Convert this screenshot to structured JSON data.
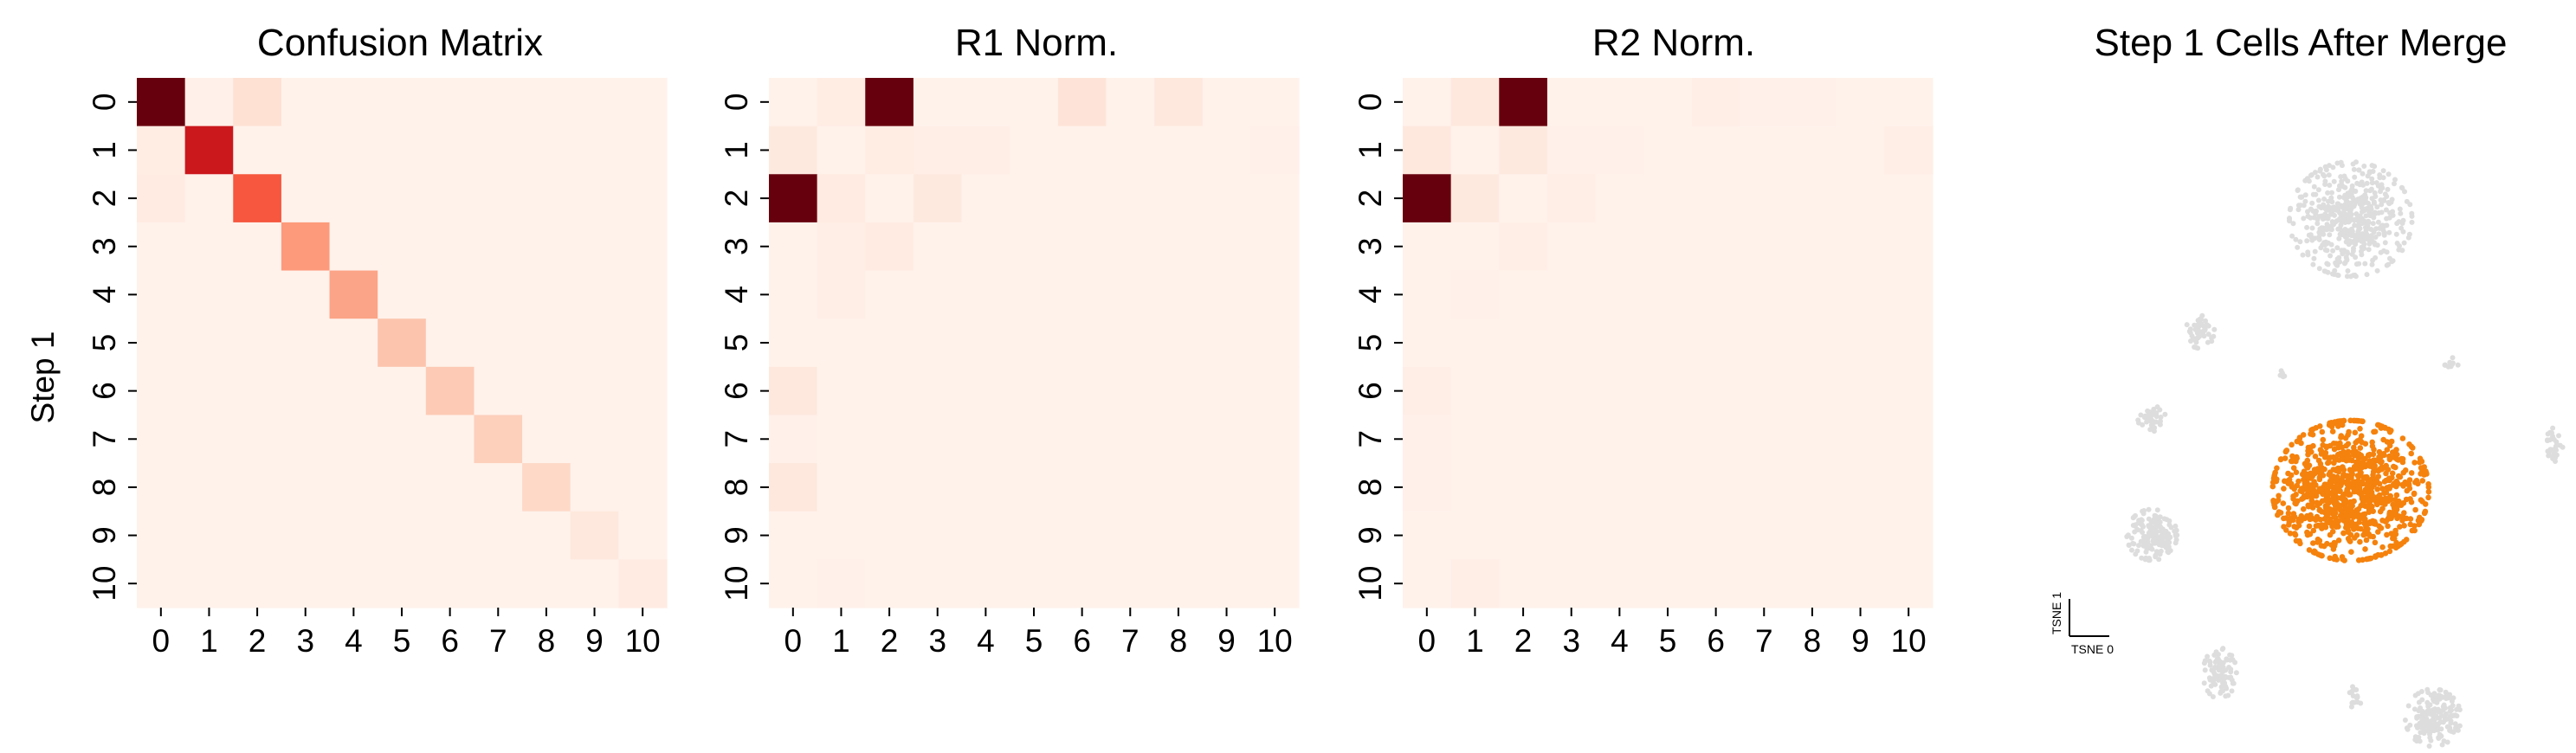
{
  "figure": {
    "panels": [
      "Confusion Matrix",
      "R1 Norm.",
      "R2 Norm.",
      "Step 1 Cells After Merge"
    ]
  },
  "chart_data": [
    {
      "type": "heatmap",
      "title": "Confusion Matrix",
      "ylabel": "Step 1",
      "xlabel": "",
      "x_categories": [
        "0",
        "1",
        "2",
        "3",
        "4",
        "5",
        "6",
        "7",
        "8",
        "9",
        "10"
      ],
      "y_categories": [
        "0",
        "1",
        "2",
        "3",
        "4",
        "5",
        "6",
        "7",
        "8",
        "9",
        "10"
      ],
      "colormap": "Reds",
      "grid": false,
      "values": [
        [
          1.0,
          0.03,
          0.12,
          0.02,
          0.02,
          0.02,
          0.02,
          0.02,
          0.02,
          0.02,
          0.02
        ],
        [
          0.05,
          0.75,
          0.02,
          0.02,
          0.02,
          0.02,
          0.02,
          0.02,
          0.02,
          0.02,
          0.02
        ],
        [
          0.06,
          0.02,
          0.55,
          0.02,
          0.02,
          0.02,
          0.02,
          0.02,
          0.02,
          0.02,
          0.02
        ],
        [
          0.02,
          0.02,
          0.02,
          0.35,
          0.02,
          0.02,
          0.02,
          0.02,
          0.02,
          0.02,
          0.02
        ],
        [
          0.02,
          0.02,
          0.02,
          0.02,
          0.32,
          0.02,
          0.02,
          0.02,
          0.02,
          0.02,
          0.02
        ],
        [
          0.02,
          0.02,
          0.02,
          0.02,
          0.02,
          0.22,
          0.02,
          0.02,
          0.02,
          0.02,
          0.02
        ],
        [
          0.02,
          0.02,
          0.02,
          0.02,
          0.02,
          0.02,
          0.2,
          0.02,
          0.02,
          0.02,
          0.02
        ],
        [
          0.02,
          0.02,
          0.02,
          0.02,
          0.02,
          0.02,
          0.02,
          0.18,
          0.02,
          0.02,
          0.02
        ],
        [
          0.02,
          0.02,
          0.02,
          0.02,
          0.02,
          0.02,
          0.02,
          0.02,
          0.15,
          0.02,
          0.02
        ],
        [
          0.02,
          0.02,
          0.02,
          0.02,
          0.02,
          0.02,
          0.02,
          0.02,
          0.02,
          0.08,
          0.02
        ],
        [
          0.02,
          0.02,
          0.02,
          0.02,
          0.02,
          0.02,
          0.02,
          0.02,
          0.02,
          0.02,
          0.06
        ]
      ]
    },
    {
      "type": "heatmap",
      "title": "R1 Norm.",
      "ylabel": "",
      "xlabel": "",
      "x_categories": [
        "0",
        "1",
        "2",
        "3",
        "4",
        "5",
        "6",
        "7",
        "8",
        "9",
        "10"
      ],
      "y_categories": [
        "0",
        "1",
        "2",
        "3",
        "4",
        "5",
        "6",
        "7",
        "8",
        "9",
        "10"
      ],
      "colormap": "Reds",
      "grid": false,
      "values": [
        [
          0.02,
          0.05,
          1.0,
          0.02,
          0.02,
          0.02,
          0.1,
          0.02,
          0.08,
          0.02,
          0.02
        ],
        [
          0.07,
          0.02,
          0.05,
          0.04,
          0.04,
          0.02,
          0.02,
          0.02,
          0.02,
          0.02,
          0.03
        ],
        [
          1.0,
          0.06,
          0.02,
          0.07,
          0.02,
          0.02,
          0.02,
          0.02,
          0.02,
          0.02,
          0.02
        ],
        [
          0.02,
          0.04,
          0.06,
          0.02,
          0.02,
          0.02,
          0.02,
          0.02,
          0.02,
          0.02,
          0.02
        ],
        [
          0.02,
          0.04,
          0.02,
          0.02,
          0.02,
          0.02,
          0.02,
          0.02,
          0.02,
          0.02,
          0.02
        ],
        [
          0.02,
          0.02,
          0.02,
          0.02,
          0.02,
          0.02,
          0.02,
          0.02,
          0.02,
          0.02,
          0.02
        ],
        [
          0.08,
          0.02,
          0.02,
          0.02,
          0.02,
          0.02,
          0.02,
          0.02,
          0.02,
          0.02,
          0.02
        ],
        [
          0.03,
          0.02,
          0.02,
          0.02,
          0.02,
          0.02,
          0.02,
          0.02,
          0.02,
          0.02,
          0.02
        ],
        [
          0.08,
          0.02,
          0.02,
          0.02,
          0.02,
          0.02,
          0.02,
          0.02,
          0.02,
          0.02,
          0.02
        ],
        [
          0.02,
          0.02,
          0.02,
          0.02,
          0.02,
          0.02,
          0.02,
          0.02,
          0.02,
          0.02,
          0.02
        ],
        [
          0.02,
          0.03,
          0.02,
          0.02,
          0.02,
          0.02,
          0.02,
          0.02,
          0.02,
          0.02,
          0.02
        ]
      ]
    },
    {
      "type": "heatmap",
      "title": "R2 Norm.",
      "ylabel": "",
      "xlabel": "",
      "x_categories": [
        "0",
        "1",
        "2",
        "3",
        "4",
        "5",
        "6",
        "7",
        "8",
        "9",
        "10"
      ],
      "y_categories": [
        "0",
        "1",
        "2",
        "3",
        "4",
        "5",
        "6",
        "7",
        "8",
        "9",
        "10"
      ],
      "colormap": "Reds",
      "grid": false,
      "values": [
        [
          0.02,
          0.08,
          1.0,
          0.02,
          0.02,
          0.02,
          0.04,
          0.03,
          0.03,
          0.02,
          0.02
        ],
        [
          0.08,
          0.02,
          0.07,
          0.03,
          0.03,
          0.02,
          0.02,
          0.02,
          0.02,
          0.02,
          0.04
        ],
        [
          1.0,
          0.07,
          0.02,
          0.04,
          0.02,
          0.02,
          0.02,
          0.02,
          0.02,
          0.02,
          0.02
        ],
        [
          0.02,
          0.02,
          0.04,
          0.02,
          0.02,
          0.02,
          0.02,
          0.02,
          0.02,
          0.02,
          0.02
        ],
        [
          0.02,
          0.03,
          0.02,
          0.02,
          0.02,
          0.02,
          0.02,
          0.02,
          0.02,
          0.02,
          0.02
        ],
        [
          0.02,
          0.02,
          0.02,
          0.02,
          0.02,
          0.02,
          0.02,
          0.02,
          0.02,
          0.02,
          0.02
        ],
        [
          0.04,
          0.02,
          0.02,
          0.02,
          0.02,
          0.02,
          0.02,
          0.02,
          0.02,
          0.02,
          0.02
        ],
        [
          0.03,
          0.02,
          0.02,
          0.02,
          0.02,
          0.02,
          0.02,
          0.02,
          0.02,
          0.02,
          0.02
        ],
        [
          0.03,
          0.02,
          0.02,
          0.02,
          0.02,
          0.02,
          0.02,
          0.02,
          0.02,
          0.02,
          0.02
        ],
        [
          0.02,
          0.02,
          0.02,
          0.02,
          0.02,
          0.02,
          0.02,
          0.02,
          0.02,
          0.02,
          0.02
        ],
        [
          0.02,
          0.04,
          0.02,
          0.02,
          0.02,
          0.02,
          0.02,
          0.02,
          0.02,
          0.02,
          0.02
        ]
      ]
    },
    {
      "type": "scatter",
      "title": "Step 1 Cells After Merge",
      "xlabel": "TSNE 0",
      "ylabel": "TSNE 1",
      "xlim": [
        -50,
        50
      ],
      "ylim": [
        -50,
        50
      ],
      "highlight_color": "#f5820d",
      "background_color": "#dddddd",
      "clusters": [
        {
          "group": "background",
          "center": [
            8,
            37
          ],
          "spread": [
            11,
            9
          ],
          "count": 520
        },
        {
          "group": "background",
          "center": [
            -23,
            17
          ],
          "spread": [
            2.5,
            3
          ],
          "count": 50
        },
        {
          "group": "background",
          "center": [
            -33,
            1
          ],
          "spread": [
            2.5,
            2
          ],
          "count": 40
        },
        {
          "group": "background",
          "center": [
            -33,
            -20
          ],
          "spread": [
            4.5,
            4
          ],
          "count": 150
        },
        {
          "group": "background",
          "center": [
            -19,
            -45
          ],
          "spread": [
            3,
            4
          ],
          "count": 90
        },
        {
          "group": "background",
          "center": [
            9,
            -49
          ],
          "spread": [
            1.5,
            2
          ],
          "count": 15
        },
        {
          "group": "background",
          "center": [
            25,
            -53
          ],
          "spread": [
            5,
            4.5
          ],
          "count": 180
        },
        {
          "group": "background",
          "center": [
            50,
            -4
          ],
          "spread": [
            1.5,
            3
          ],
          "count": 30
        },
        {
          "group": "background",
          "center": [
            29,
            11
          ],
          "spread": [
            1.5,
            1
          ],
          "count": 10
        },
        {
          "group": "background",
          "center": [
            -6,
            9
          ],
          "spread": [
            0.7,
            1
          ],
          "count": 5
        },
        {
          "group": "highlight",
          "center": [
            8,
            -12
          ],
          "spread": [
            14,
            11
          ],
          "count": 900
        }
      ]
    }
  ]
}
